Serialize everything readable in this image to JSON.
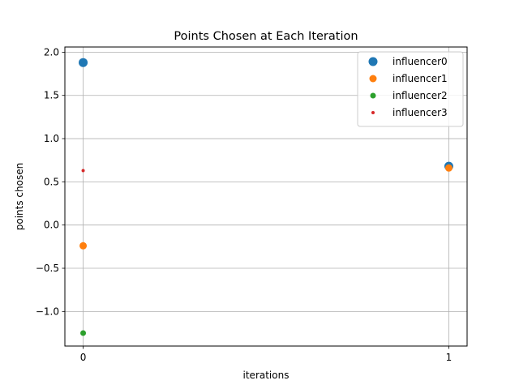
{
  "chart_data": {
    "type": "scatter",
    "title": "Points Chosen at Each Iteration",
    "xlabel": "iterations",
    "ylabel": "points chosen",
    "xlim": [
      -0.05,
      1.05
    ],
    "ylim": [
      -1.4,
      2.06
    ],
    "x_ticks": [
      0,
      1
    ],
    "y_ticks": [
      -1.0,
      -0.5,
      0.0,
      0.5,
      1.0,
      1.5,
      2.0
    ],
    "y_tick_labels": [
      "−1.0",
      "−0.5",
      "0.0",
      "0.5",
      "1.0",
      "1.5",
      "2.0"
    ],
    "grid": true,
    "legend_position": "top-right",
    "series": [
      {
        "name": "influencer0",
        "color": "#1f77b4",
        "size": "largest",
        "points": [
          {
            "x": 0,
            "y": 1.88
          },
          {
            "x": 1,
            "y": 0.68
          }
        ]
      },
      {
        "name": "influencer1",
        "color": "#ff7f0e",
        "size": "large",
        "points": [
          {
            "x": 0,
            "y": -0.24
          },
          {
            "x": 1,
            "y": 0.66
          }
        ]
      },
      {
        "name": "influencer2",
        "color": "#2ca02c",
        "size": "medium",
        "points": [
          {
            "x": 0,
            "y": -1.25
          }
        ]
      },
      {
        "name": "influencer3",
        "color": "#d62728",
        "size": "small",
        "points": [
          {
            "x": 0,
            "y": 0.63
          }
        ]
      }
    ]
  }
}
